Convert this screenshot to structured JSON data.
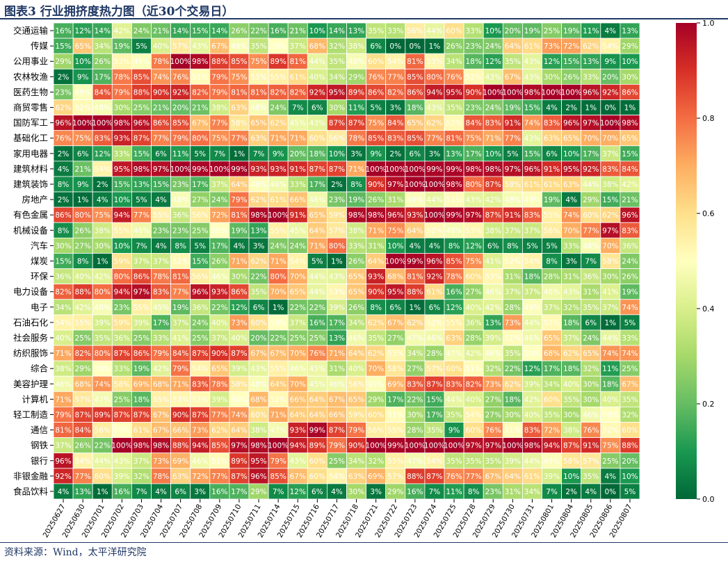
{
  "title": "图表3 行业拥挤度热力图（近30个交易日）",
  "source": "资料来源：Wind，太平洋研究院",
  "chart_data": {
    "type": "heatmap",
    "x_labels": [
      "20250627",
      "20250630",
      "20250701",
      "20250702",
      "20250703",
      "20250704",
      "20250707",
      "20250708",
      "20250709",
      "20250710",
      "20250711",
      "20250714",
      "20250715",
      "20250716",
      "20250717",
      "20250718",
      "20250721",
      "20250722",
      "20250723",
      "20250724",
      "20250725",
      "20250728",
      "20250729",
      "20250730",
      "20250731",
      "20250801",
      "20250804",
      "20250805",
      "20250806",
      "20250807"
    ],
    "y_labels": [
      "交通运输",
      "传媒",
      "公用事业",
      "农林牧渔",
      "医药生物",
      "商贸零售",
      "国防军工",
      "基础化工",
      "家用电器",
      "建筑材料",
      "建筑装饰",
      "房地产",
      "有色金属",
      "机械设备",
      "汽车",
      "煤炭",
      "环保",
      "电力设备",
      "电子",
      "石油石化",
      "社会服务",
      "纺织服饰",
      "综合",
      "美容护理",
      "计算机",
      "轻工制造",
      "通信",
      "钢铁",
      "银行",
      "非银金融",
      "食品饮料"
    ],
    "values": [
      [
        16,
        12,
        14,
        42,
        24,
        21,
        14,
        15,
        14,
        26,
        22,
        16,
        21,
        10,
        14,
        13,
        35,
        33,
        56,
        44,
        60,
        33,
        10,
        20,
        19,
        25,
        19,
        11,
        4,
        13
      ],
      [
        15,
        65,
        34,
        19,
        5,
        40,
        57,
        43,
        67,
        48,
        35,
        50,
        37,
        68,
        32,
        38,
        6,
        0,
        0,
        1,
        26,
        23,
        24,
        64,
        61,
        73,
        72,
        62,
        54,
        29
      ],
      [
        29,
        10,
        26,
        53,
        49,
        78,
        100,
        98,
        88,
        85,
        75,
        89,
        81,
        44,
        35,
        48,
        60,
        54,
        81,
        53,
        34,
        18,
        12,
        35,
        43,
        12,
        15,
        13,
        9,
        10
      ],
      [
        2,
        9,
        17,
        78,
        85,
        74,
        76,
        51,
        79,
        75,
        53,
        55,
        61,
        40,
        34,
        29,
        76,
        77,
        85,
        80,
        76,
        52,
        43,
        67,
        43,
        30,
        26,
        33,
        20,
        30
      ],
      [
        23,
        49,
        84,
        79,
        88,
        90,
        92,
        82,
        79,
        81,
        81,
        82,
        82,
        92,
        95,
        89,
        86,
        82,
        86,
        94,
        95,
        90,
        100,
        100,
        98,
        100,
        100,
        96,
        92,
        86
      ],
      [
        62,
        52,
        48,
        30,
        25,
        21,
        20,
        21,
        38,
        63,
        48,
        24,
        7,
        6,
        30,
        11,
        5,
        3,
        18,
        43,
        35,
        23,
        24,
        19,
        15,
        4,
        2,
        1,
        0,
        1
      ],
      [
        96,
        100,
        100,
        98,
        96,
        86,
        85,
        67,
        77,
        58,
        65,
        62,
        45,
        43,
        87,
        87,
        75,
        84,
        65,
        62,
        52,
        84,
        83,
        91,
        74,
        83,
        96,
        97,
        100,
        98
      ],
      [
        76,
        75,
        83,
        93,
        87,
        77,
        79,
        80,
        75,
        77,
        63,
        71,
        71,
        60,
        56,
        78,
        85,
        83,
        85,
        77,
        81,
        75,
        71,
        77,
        43,
        63,
        65,
        70,
        70,
        65
      ],
      [
        2,
        6,
        12,
        33,
        15,
        6,
        11,
        5,
        7,
        1,
        7,
        9,
        20,
        18,
        10,
        3,
        9,
        2,
        6,
        3,
        13,
        17,
        10,
        5,
        15,
        6,
        10,
        17,
        37,
        15
      ],
      [
        4,
        21,
        54,
        95,
        98,
        97,
        100,
        99,
        100,
        99,
        93,
        93,
        91,
        87,
        87,
        71,
        100,
        100,
        100,
        99,
        99,
        98,
        98,
        97,
        96,
        91,
        95,
        92,
        83,
        84
      ],
      [
        8,
        9,
        2,
        15,
        13,
        15,
        23,
        17,
        37,
        64,
        49,
        46,
        33,
        17,
        2,
        8,
        90,
        97,
        100,
        100,
        98,
        80,
        87,
        58,
        61,
        61,
        63,
        44,
        38,
        42
      ],
      [
        2,
        1,
        4,
        10,
        5,
        4,
        48,
        27,
        24,
        79,
        62,
        61,
        66,
        46,
        23,
        19,
        26,
        31,
        49,
        44,
        51,
        43,
        42,
        48,
        49,
        19,
        4,
        29,
        15,
        21
      ],
      [
        86,
        80,
        75,
        94,
        77,
        55,
        36,
        56,
        72,
        81,
        98,
        100,
        91,
        65,
        59,
        98,
        98,
        96,
        93,
        100,
        99,
        97,
        87,
        91,
        83,
        55,
        74,
        60,
        62,
        96
      ],
      [
        8,
        26,
        38,
        55,
        46,
        23,
        23,
        25,
        50,
        19,
        13,
        55,
        45,
        64,
        57,
        38,
        71,
        75,
        64,
        52,
        48,
        53,
        38,
        37,
        37,
        56,
        70,
        77,
        97,
        83
      ],
      [
        30,
        27,
        30,
        10,
        7,
        4,
        8,
        5,
        17,
        4,
        3,
        24,
        24,
        71,
        80,
        33,
        31,
        10,
        4,
        4,
        8,
        12,
        6,
        8,
        5,
        5,
        33,
        48,
        70,
        36
      ],
      [
        15,
        8,
        1,
        59,
        37,
        37,
        52,
        15,
        26,
        71,
        62,
        71,
        54,
        5,
        1,
        26,
        64,
        100,
        99,
        96,
        85,
        75,
        41,
        52,
        54,
        8,
        3,
        7,
        58,
        24
      ],
      [
        36,
        40,
        42,
        80,
        86,
        78,
        81,
        56,
        46,
        30,
        22,
        80,
        70,
        44,
        43,
        65,
        93,
        68,
        81,
        92,
        78,
        60,
        53,
        31,
        18,
        28,
        31,
        36,
        30,
        26
      ],
      [
        82,
        88,
        80,
        94,
        97,
        83,
        77,
        96,
        93,
        86,
        35,
        70,
        65,
        44,
        53,
        65,
        90,
        95,
        88,
        61,
        16,
        27,
        46,
        37,
        37,
        46,
        43,
        31,
        41,
        19
      ],
      [
        34,
        42,
        48,
        23,
        55,
        45,
        19,
        36,
        22,
        12,
        6,
        1,
        22,
        22,
        39,
        26,
        8,
        6,
        1,
        6,
        12,
        40,
        42,
        28,
        49,
        37,
        32,
        35,
        37,
        74
      ],
      [
        54,
        55,
        39,
        59,
        39,
        17,
        37,
        24,
        40,
        73,
        60,
        50,
        37,
        16,
        17,
        34,
        62,
        67,
        62,
        52,
        55,
        36,
        13,
        73,
        44,
        52,
        18,
        6,
        1,
        5
      ],
      [
        40,
        25,
        35,
        36,
        25,
        33,
        41,
        25,
        37,
        40,
        20,
        22,
        25,
        25,
        13,
        46,
        35,
        27,
        47,
        46,
        63,
        28,
        39,
        51,
        46,
        65,
        37,
        24,
        44,
        33
      ],
      [
        71,
        82,
        80,
        87,
        86,
        79,
        84,
        87,
        90,
        87,
        67,
        67,
        70,
        76,
        71,
        64,
        62,
        53,
        34,
        28,
        47,
        42,
        48,
        35,
        50,
        68,
        62,
        65,
        74,
        74
      ],
      [
        38,
        29,
        50,
        33,
        19,
        42,
        79,
        54,
        65,
        39,
        43,
        55,
        46,
        45,
        31,
        40,
        70,
        58,
        27,
        57,
        60,
        51,
        32,
        22,
        12,
        17,
        18,
        32,
        11,
        25
      ],
      [
        46,
        68,
        74,
        58,
        69,
        68,
        71,
        83,
        78,
        58,
        48,
        64,
        70,
        45,
        46,
        56,
        49,
        69,
        83,
        87,
        83,
        82,
        73,
        62,
        39,
        34,
        40,
        30,
        18,
        67
      ],
      [
        71,
        57,
        47,
        25,
        18,
        55,
        53,
        52,
        39,
        50,
        68,
        52,
        66,
        64,
        67,
        65,
        29,
        17,
        22,
        15,
        44,
        40,
        27,
        18,
        42,
        60,
        35,
        30,
        40,
        35
      ],
      [
        79,
        87,
        89,
        87,
        87,
        67,
        90,
        87,
        77,
        74,
        60,
        71,
        64,
        64,
        66,
        59,
        60,
        51,
        30,
        17,
        35,
        54,
        27,
        30,
        40,
        35,
        30,
        46,
        50,
        32
      ],
      [
        81,
        84,
        56,
        50,
        61,
        67,
        66,
        73,
        62,
        64,
        38,
        47,
        93,
        99,
        87,
        79,
        56,
        55,
        28,
        35,
        9,
        60,
        76,
        51,
        83,
        72,
        38,
        76,
        52,
        60
      ],
      [
        37,
        26,
        22,
        100,
        98,
        98,
        88,
        94,
        85,
        97,
        98,
        100,
        94,
        89,
        79,
        90,
        100,
        99,
        100,
        100,
        100,
        97,
        97,
        100,
        98,
        94,
        87,
        91,
        75,
        88
      ],
      [
        96,
        54,
        44,
        43,
        37,
        73,
        69,
        46,
        51,
        89,
        95,
        79,
        43,
        60,
        25,
        34,
        32,
        55,
        47,
        54,
        35,
        35,
        35,
        39,
        44,
        49,
        58,
        57,
        25,
        20
      ],
      [
        92,
        77,
        60,
        39,
        32,
        78,
        63,
        72,
        77,
        87,
        96,
        85,
        67,
        60,
        54,
        63,
        69,
        57,
        88,
        87,
        76,
        77,
        67,
        64,
        61,
        39,
        10,
        35,
        4,
        10
      ],
      [
        4,
        13,
        1,
        16,
        7,
        4,
        6,
        3,
        16,
        17,
        29,
        7,
        12,
        6,
        4,
        30,
        3,
        29,
        16,
        7,
        11,
        8,
        23,
        31,
        34,
        7,
        2,
        4,
        0,
        5
      ]
    ],
    "value_format": "percent",
    "colorbar": {
      "min": 0.0,
      "max": 1.0,
      "ticks": [
        "0.0",
        "0.2",
        "0.4",
        "0.6",
        "0.8",
        "1.0"
      ]
    },
    "colormap": [
      "#006837",
      "#1a9850",
      "#66bd63",
      "#a6d96a",
      "#d9ef8b",
      "#ffffbf",
      "#fee08b",
      "#fdae61",
      "#f46d43",
      "#d73027",
      "#a50026"
    ]
  }
}
